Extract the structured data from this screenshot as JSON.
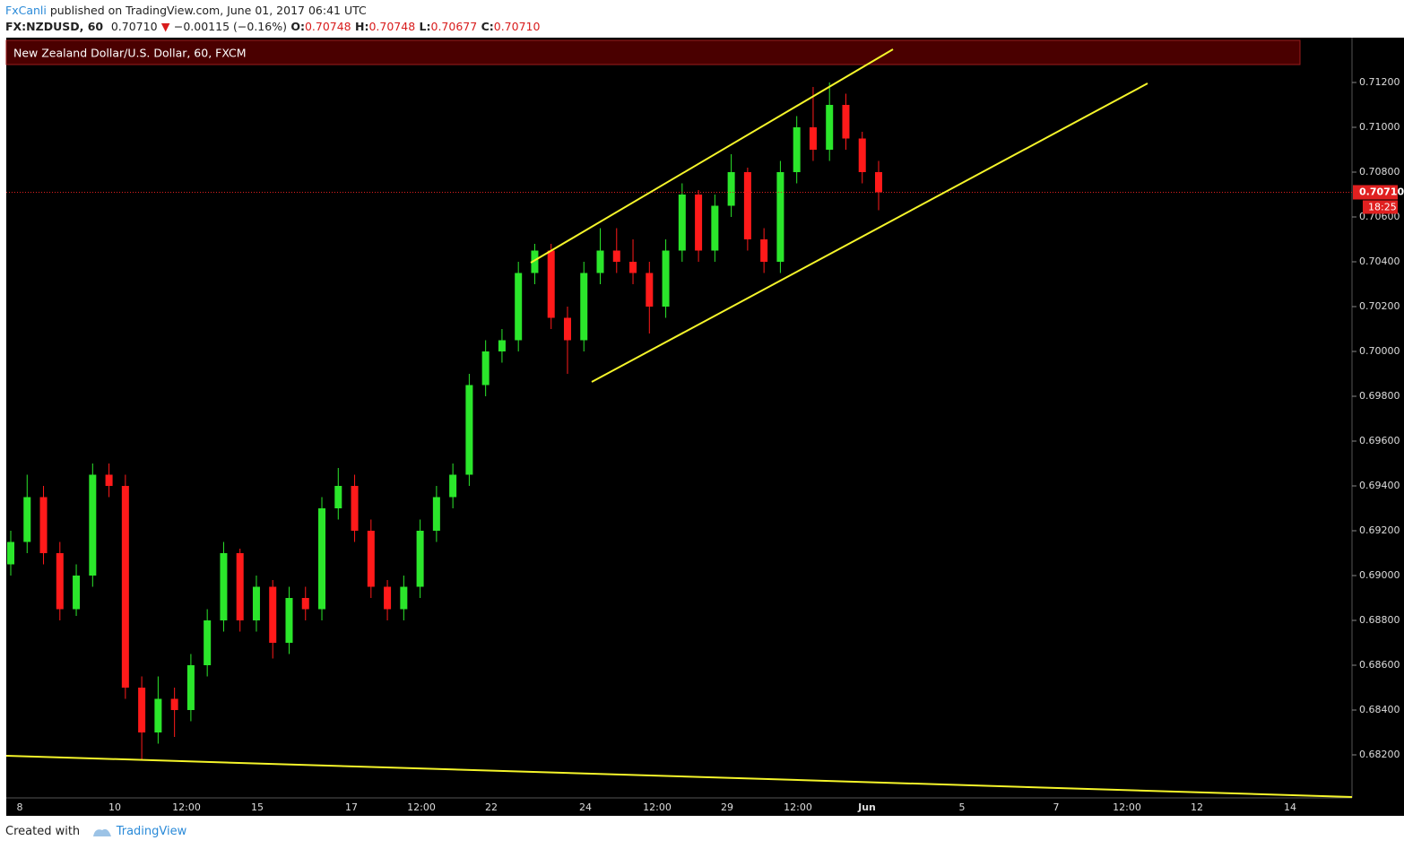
{
  "header": {
    "author": "FxCanli",
    "published": "published on TradingView.com, June 01, 2017 06:41 UTC",
    "symbol": "FX:NZDUSD, 60",
    "last": "0.70710",
    "change": "−0.00115 (−0.16%)",
    "open_label": "O:",
    "open": "0.70748",
    "high_label": "H:",
    "high": "0.70748",
    "low_label": "L:",
    "low": "0.70677",
    "close_label": "C:",
    "close": "0.70710"
  },
  "chart_data": {
    "type": "candlestick",
    "title": "New Zealand Dollar/U.S. Dollar, 60, FXCM",
    "up_color": "#2be62b",
    "down_color": "#ff1a1a",
    "open": [
      0.6905,
      0.6915,
      0.6935,
      0.691,
      0.6885,
      0.69,
      0.6945,
      0.694,
      0.685,
      0.683,
      0.6845,
      0.684,
      0.686,
      0.688,
      0.691,
      0.688,
      0.6895,
      0.687,
      0.689,
      0.6885,
      0.693,
      0.694,
      0.692,
      0.6895,
      0.6885,
      0.6895,
      0.692,
      0.6935,
      0.6945,
      0.6985,
      0.7,
      0.7005,
      0.7035,
      0.7045,
      0.7015,
      0.7005,
      0.7035,
      0.7045,
      0.704,
      0.7035,
      0.702,
      0.7045,
      0.707,
      0.7045,
      0.7065,
      0.708,
      0.705,
      0.704,
      0.708,
      0.71,
      0.709,
      0.711,
      0.7095,
      0.708
    ],
    "high": [
      0.692,
      0.6945,
      0.694,
      0.6915,
      0.6905,
      0.695,
      0.695,
      0.6945,
      0.6855,
      0.6855,
      0.685,
      0.6865,
      0.6885,
      0.6915,
      0.6912,
      0.69,
      0.6898,
      0.6895,
      0.6895,
      0.6935,
      0.6948,
      0.6945,
      0.6925,
      0.6898,
      0.69,
      0.6925,
      0.694,
      0.695,
      0.699,
      0.7005,
      0.701,
      0.704,
      0.7048,
      0.7048,
      0.702,
      0.704,
      0.7055,
      0.7055,
      0.705,
      0.704,
      0.705,
      0.7075,
      0.7072,
      0.707,
      0.7088,
      0.7082,
      0.7055,
      0.7085,
      0.7105,
      0.7118,
      0.712,
      0.7115,
      0.7098,
      0.7085
    ],
    "low": [
      0.69,
      0.691,
      0.6905,
      0.688,
      0.6882,
      0.6895,
      0.6935,
      0.6845,
      0.6818,
      0.6825,
      0.6828,
      0.6835,
      0.6855,
      0.6875,
      0.6875,
      0.6875,
      0.6863,
      0.6865,
      0.688,
      0.688,
      0.6925,
      0.6915,
      0.689,
      0.688,
      0.688,
      0.689,
      0.6915,
      0.693,
      0.694,
      0.698,
      0.6995,
      0.7,
      0.703,
      0.701,
      0.699,
      0.7,
      0.703,
      0.7035,
      0.703,
      0.7008,
      0.7015,
      0.704,
      0.704,
      0.704,
      0.706,
      0.7045,
      0.7035,
      0.7035,
      0.7075,
      0.7085,
      0.7085,
      0.709,
      0.7075,
      0.7063
    ],
    "close": [
      0.6915,
      0.6935,
      0.691,
      0.6885,
      0.69,
      0.6945,
      0.694,
      0.685,
      0.683,
      0.6845,
      0.684,
      0.686,
      0.688,
      0.691,
      0.688,
      0.6895,
      0.687,
      0.689,
      0.6885,
      0.693,
      0.694,
      0.692,
      0.6895,
      0.6885,
      0.6895,
      0.692,
      0.6935,
      0.6945,
      0.6985,
      0.7,
      0.7005,
      0.7035,
      0.7045,
      0.7015,
      0.7005,
      0.7035,
      0.7045,
      0.704,
      0.7035,
      0.702,
      0.7045,
      0.707,
      0.7045,
      0.7065,
      0.708,
      0.705,
      0.704,
      0.708,
      0.71,
      0.709,
      0.711,
      0.7095,
      0.708,
      0.7071
    ],
    "ylim": [
      0.68008,
      0.71392
    ],
    "yticks": [
      {
        "value": 0.682,
        "label": "0.68200"
      },
      {
        "value": 0.684,
        "label": "0.68400"
      },
      {
        "value": 0.686,
        "label": "0.68600"
      },
      {
        "value": 0.688,
        "label": "0.68800"
      },
      {
        "value": 0.69,
        "label": "0.69000"
      },
      {
        "value": 0.692,
        "label": "0.69200"
      },
      {
        "value": 0.694,
        "label": "0.69400"
      },
      {
        "value": 0.696,
        "label": "0.69600"
      },
      {
        "value": 0.698,
        "label": "0.69800"
      },
      {
        "value": 0.7,
        "label": "0.70000"
      },
      {
        "value": 0.702,
        "label": "0.70200"
      },
      {
        "value": 0.704,
        "label": "0.70400"
      },
      {
        "value": 0.706,
        "label": "0.70600"
      },
      {
        "value": 0.708,
        "label": "0.70800"
      },
      {
        "value": 0.71,
        "label": "0.71000"
      },
      {
        "value": 0.712,
        "label": "0.71200"
      }
    ],
    "xticks": [
      "8",
      "10",
      "12:00",
      "15",
      "17",
      "12:00",
      "22",
      "24",
      "12:00",
      "29",
      "12:00",
      "Jun",
      "5",
      "7",
      "12:00",
      "12",
      "14"
    ],
    "last_price": {
      "value": 0.7071,
      "label": "0.70710"
    },
    "countdown": "18:25"
  },
  "footer": {
    "created_with": "Created with",
    "brand": "TradingView"
  }
}
